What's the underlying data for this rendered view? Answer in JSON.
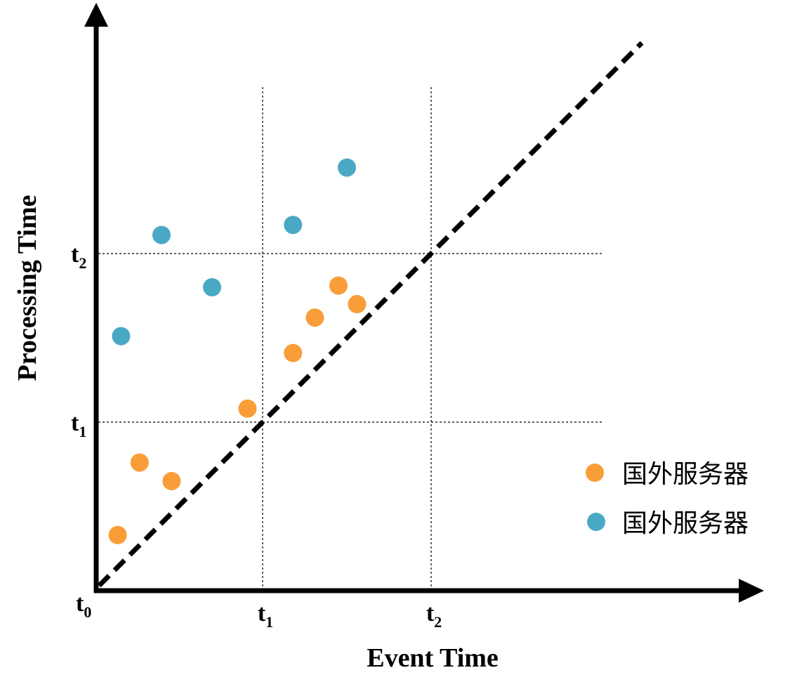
{
  "chart_data": {
    "type": "scatter",
    "xlabel": "Event Time",
    "ylabel": "Processing Time",
    "ticks": [
      {
        "id": "t0",
        "base": "t",
        "sub": "0",
        "value": 0
      },
      {
        "id": "t1",
        "base": "t",
        "sub": "1",
        "value": 1
      },
      {
        "id": "t2",
        "base": "t",
        "sub": "2",
        "value": 2
      }
    ],
    "xlim": [
      0,
      3.05
    ],
    "ylim": [
      0,
      3.4
    ],
    "grid": "dotted lines at t1 and t2",
    "reference_line": {
      "style": "dashed",
      "color": "#000000",
      "from": [
        0.03,
        0.03
      ],
      "to": [
        3.25,
        3.25
      ]
    },
    "series": [
      {
        "name": "国外服务器",
        "color": "#f99d38",
        "points": [
          [
            0.14,
            0.33
          ],
          [
            0.27,
            0.76
          ],
          [
            0.46,
            0.65
          ],
          [
            0.91,
            1.08
          ],
          [
            1.18,
            1.41
          ],
          [
            1.31,
            1.62
          ],
          [
            1.45,
            1.81
          ],
          [
            1.56,
            1.7
          ]
        ]
      },
      {
        "name": "国外服务器",
        "color": "#49a9c4",
        "points": [
          [
            0.16,
            1.51
          ],
          [
            0.4,
            2.11
          ],
          [
            0.7,
            1.8
          ],
          [
            1.18,
            2.17
          ],
          [
            1.5,
            2.51
          ]
        ]
      }
    ]
  }
}
